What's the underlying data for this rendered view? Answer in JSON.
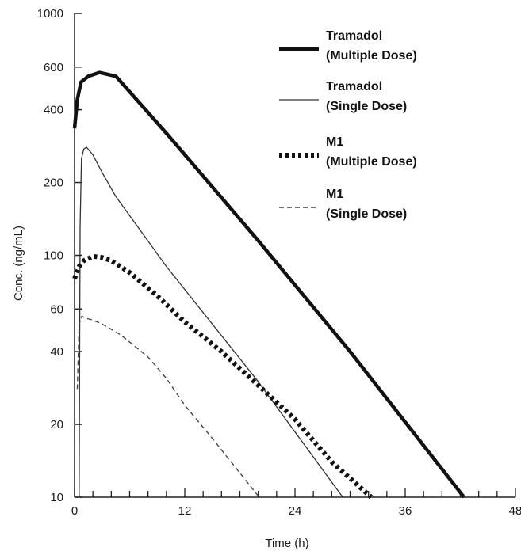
{
  "chart_data": {
    "type": "line",
    "xlabel": "Time (h)",
    "ylabel": "Conc. (ng/mL)",
    "xlim": [
      0,
      48
    ],
    "ylim": [
      10,
      1000
    ],
    "yscale": "log",
    "x_ticks": [
      0,
      12,
      24,
      36,
      48
    ],
    "x_tick_labels": [
      "0",
      "12",
      "24",
      "36",
      "48"
    ],
    "x_minor_step": 2,
    "y_ticks": [
      10,
      20,
      40,
      60,
      100,
      200,
      400,
      600,
      1000
    ],
    "y_tick_labels": [
      "10",
      "20",
      "40",
      "60",
      "100",
      "200",
      "400",
      "600",
      "1000"
    ],
    "legend_position": "top-right",
    "grid": false,
    "series": [
      {
        "name_lines": [
          "Tramadol",
          "(Multiple Dose)"
        ],
        "style": "thick-solid",
        "color": "#111111",
        "x": [
          0,
          0.3,
          0.7,
          1.5,
          2.7,
          4.5,
          10,
          20,
          30,
          42.4
        ],
        "y": [
          335,
          440,
          520,
          550,
          570,
          550,
          320,
          115,
          40,
          10
        ]
      },
      {
        "name_lines": [
          "Tramadol",
          "(Single Dose)"
        ],
        "style": "thin-solid",
        "color": "#333333",
        "x": [
          0.5,
          0.6,
          0.75,
          1.0,
          1.3,
          2.0,
          3.0,
          4.5,
          10,
          20,
          29.2
        ],
        "y": [
          10,
          130,
          250,
          275,
          280,
          260,
          220,
          175,
          90,
          30,
          10
        ]
      },
      {
        "name_lines": [
          "M1",
          "(Multiple Dose)"
        ],
        "style": "dotted-thick",
        "color": "#111111",
        "x": [
          0,
          0.5,
          1.0,
          2.0,
          3.0,
          4.0,
          6.0,
          9.0,
          12,
          16,
          20,
          24,
          28,
          32.3
        ],
        "y": [
          80,
          90,
          95,
          99,
          98,
          95,
          85,
          68,
          53,
          40,
          29,
          21,
          14,
          10
        ]
      },
      {
        "name_lines": [
          "M1",
          "(Single Dose)"
        ],
        "style": "dashed",
        "color": "#444444",
        "x": [
          0.3,
          0.5,
          0.8,
          1.2,
          2.0,
          3.0,
          5.0,
          8.0,
          10,
          12,
          15,
          20.1
        ],
        "y": [
          28,
          52,
          56,
          55,
          54,
          52,
          47,
          38,
          31,
          24,
          17.5,
          10
        ]
      }
    ]
  }
}
